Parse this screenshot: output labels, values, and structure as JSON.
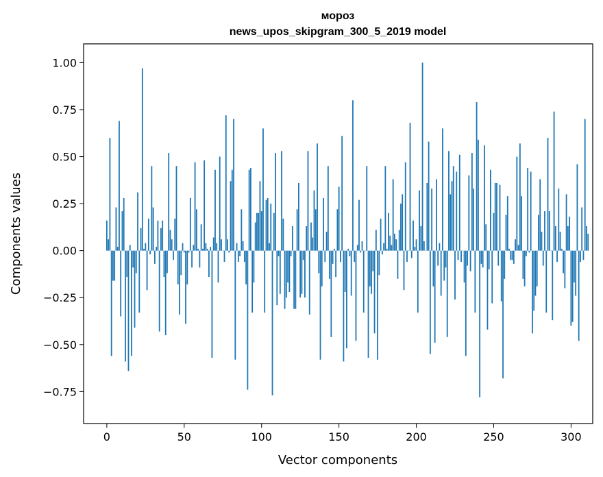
{
  "chart_data": {
    "type": "bar",
    "title": "мороз",
    "subtitle": "news_upos_skipgram_300_5_2019 model",
    "xlabel": "Vector components",
    "ylabel": "Components values",
    "xlim": [
      -15,
      314
    ],
    "ylim": [
      -0.92,
      1.1
    ],
    "xticks": [
      0,
      50,
      100,
      150,
      200,
      250,
      300
    ],
    "xtick_labels": [
      "0",
      "50",
      "100",
      "150",
      "200",
      "250",
      "300"
    ],
    "yticks": [
      1.0,
      0.75,
      0.5,
      0.25,
      0.0,
      -0.25,
      -0.5,
      -0.75
    ],
    "ytick_labels": [
      "1.00",
      "0.75",
      "0.50",
      "0.25",
      "0.00",
      "−0.25",
      "−0.50",
      "−0.75"
    ],
    "grid": false,
    "color": "#1f77b4",
    "values": [
      0.16,
      0.06,
      0.6,
      -0.56,
      -0.16,
      -0.16,
      0.23,
      0.02,
      0.69,
      -0.35,
      0.21,
      0.28,
      -0.59,
      -0.14,
      -0.64,
      0.03,
      -0.56,
      -0.09,
      -0.41,
      -0.12,
      0.31,
      -0.33,
      0.12,
      0.97,
      0.01,
      0.04,
      -0.21,
      0.17,
      -0.02,
      0.45,
      0.23,
      -0.07,
      0.02,
      0.16,
      -0.43,
      0.12,
      0.16,
      -0.14,
      -0.45,
      -0.12,
      0.52,
      0.11,
      0.06,
      -0.05,
      0.17,
      0.45,
      -0.18,
      -0.34,
      -0.13,
      0.04,
      -0.01,
      -0.39,
      -0.18,
      -0.01,
      0.28,
      -0.09,
      0.03,
      0.47,
      0.22,
      0.01,
      -0.09,
      0.14,
      0.01,
      0.48,
      0.04,
      0.01,
      -0.14,
      0.02,
      -0.57,
      0.07,
      0.43,
      0.04,
      -0.17,
      0.5,
      0.06,
      0.0,
      -0.06,
      0.72,
      0.06,
      -0.01,
      0.37,
      0.43,
      0.7,
      -0.58,
      0.04,
      -0.06,
      -0.03,
      0.22,
      0.05,
      -0.06,
      -0.18,
      -0.74,
      0.43,
      0.44,
      -0.33,
      -0.17,
      0.15,
      0.2,
      0.2,
      0.37,
      0.21,
      0.65,
      -0.33,
      0.27,
      0.28,
      0.04,
      0.25,
      -0.77,
      0.2,
      0.52,
      -0.29,
      -0.03,
      -0.23,
      0.53,
      0.17,
      -0.31,
      -0.25,
      -0.17,
      -0.22,
      -0.03,
      0.13,
      -0.31,
      -0.31,
      0.22,
      0.36,
      -0.25,
      -0.23,
      -0.05,
      -0.25,
      0.13,
      0.53,
      -0.34,
      0.15,
      0.07,
      0.32,
      0.22,
      0.57,
      -0.12,
      -0.58,
      -0.19,
      0.28,
      -0.06,
      0.1,
      0.45,
      -0.15,
      -0.46,
      -0.07,
      0.01,
      -0.14,
      0.22,
      0.34,
      -0.06,
      0.61,
      -0.59,
      -0.22,
      -0.52,
      0.01,
      -0.03,
      -0.24,
      0.8,
      -0.06,
      -0.48,
      0.03,
      0.27,
      -0.01,
      0.05,
      -0.33,
      0.0,
      0.45,
      -0.57,
      -0.19,
      -0.23,
      -0.11,
      -0.44,
      0.11,
      -0.58,
      -0.13,
      0.17,
      -0.02,
      0.04,
      0.45,
      0.01,
      0.2,
      0.08,
      0.03,
      0.38,
      0.09,
      0.06,
      -0.15,
      0.11,
      0.25,
      0.3,
      -0.21,
      0.47,
      -0.06,
      0.0,
      0.68,
      -0.04,
      0.16,
      0.02,
      0.06,
      -0.33,
      0.32,
      0.13,
      1.0,
      0.05,
      0.0,
      0.36,
      0.58,
      -0.55,
      0.33,
      -0.19,
      -0.49,
      0.38,
      -0.08,
      0.04,
      -0.24,
      0.65,
      -0.16,
      -0.09,
      -0.46,
      0.53,
      0.3,
      0.37,
      0.45,
      -0.26,
      0.42,
      -0.05,
      0.51,
      -0.06,
      0.0,
      -0.17,
      -0.56,
      -0.08,
      0.4,
      -0.11,
      0.52,
      0.33,
      -0.33,
      0.79,
      0.59,
      -0.78,
      -0.07,
      -0.09,
      0.56,
      0.14,
      -0.42,
      -0.1,
      0.43,
      -0.28,
      0.2,
      0.36,
      0.36,
      -0.08,
      0.35,
      -0.27,
      -0.68,
      -0.15,
      0.19,
      0.29,
      0.01,
      -0.05,
      -0.05,
      -0.07,
      0.06,
      0.5,
      0.03,
      0.57,
      0.29,
      -0.15,
      -0.19,
      -0.03,
      0.44,
      -0.01,
      0.42,
      -0.44,
      -0.32,
      -0.24,
      -0.19,
      0.19,
      0.38,
      0.1,
      -0.08,
      0.21,
      -0.33,
      0.6,
      0.21,
      0.0,
      -0.37,
      0.74,
      0.13,
      -0.06,
      0.33,
      0.1,
      0.01,
      -0.12,
      -0.2,
      0.3,
      0.13,
      0.18,
      -0.4,
      -0.38,
      -0.17,
      -0.24,
      0.46,
      -0.48,
      -0.06,
      0.23,
      -0.05,
      0.7,
      0.13,
      0.09
    ]
  }
}
